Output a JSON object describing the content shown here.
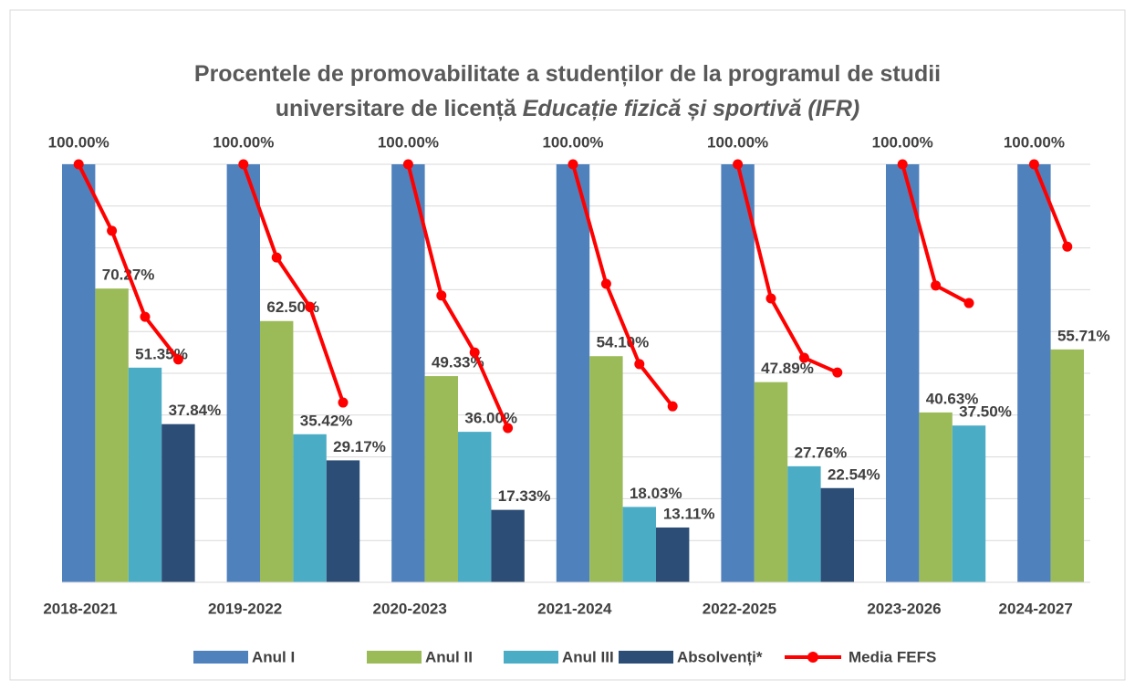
{
  "chart_data": {
    "type": "bar",
    "title": "Procentele de promovabilitate a studenților de la programul de studii universitare de licență",
    "title_italic": "Educație fizică și sportivă (IFR)",
    "categories": [
      "2018-2021",
      "2019-2022",
      "2020-2023",
      "2021-2024",
      "2022-2025",
      "2023-2026",
      "2024-2027"
    ],
    "ylim": [
      0,
      100
    ],
    "yticks": [
      0,
      10,
      20,
      30,
      40,
      50,
      60,
      70,
      80,
      90,
      100
    ],
    "grid": true,
    "series": [
      {
        "name": "Anul I",
        "color": "#4f81bd",
        "values": [
          100,
          100,
          100,
          100,
          100,
          100,
          100
        ],
        "value_labels": [
          "100.00%",
          "100.00%",
          "100.00%",
          "100.00%",
          "100.00%",
          "100.00%",
          "100.00%"
        ]
      },
      {
        "name": "Anul II",
        "color": "#9bbb59",
        "values": [
          70.27,
          62.5,
          49.33,
          54.1,
          47.89,
          40.63,
          55.71
        ],
        "value_labels": [
          "70.27%",
          "62.50%",
          "49.33%",
          "54.10%",
          "47.89%",
          "40.63%",
          "55.71%"
        ]
      },
      {
        "name": "Anul III",
        "color": "#4bacc6",
        "values": [
          51.35,
          35.42,
          36.0,
          18.03,
          27.76,
          37.5,
          null
        ],
        "value_labels": [
          "51.35%",
          "35.42%",
          "36.00%",
          "18.03%",
          "27.76%",
          "37.50%",
          null
        ]
      },
      {
        "name": "Absolvenți*",
        "color": "#2c4d75",
        "values": [
          37.84,
          29.17,
          17.33,
          13.11,
          22.54,
          null,
          null
        ],
        "value_labels": [
          "37.84%",
          "29.17%",
          "17.33%",
          "13.11%",
          "22.54%",
          null,
          null
        ]
      },
      {
        "name": "Media FEFS",
        "type": "line",
        "color": "#ff0000",
        "values": [
          [
            100,
            84.1,
            63.5,
            53.3
          ],
          [
            100,
            77.7,
            65.9,
            43.0
          ],
          [
            100,
            68.6,
            55.0,
            36.9
          ],
          [
            100,
            71.4,
            52.2,
            42.1
          ],
          [
            100,
            67.9,
            53.7,
            50.2
          ],
          [
            100,
            71.0,
            66.8,
            null
          ],
          [
            100,
            80.3,
            null,
            null
          ]
        ]
      }
    ]
  }
}
